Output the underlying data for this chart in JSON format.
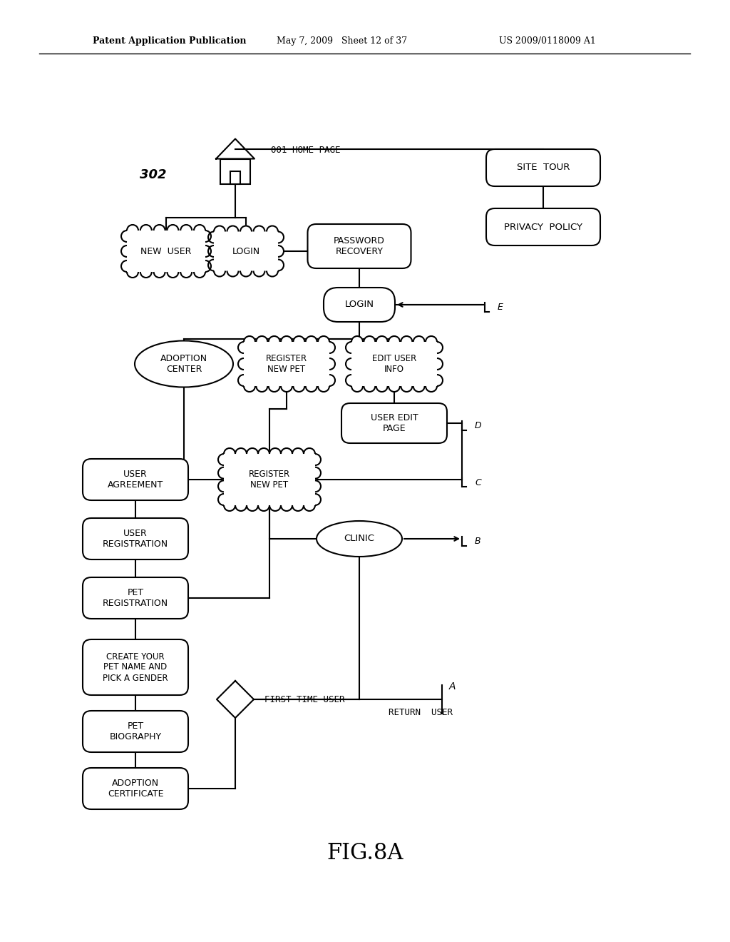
{
  "bg_color": "#ffffff",
  "header_left": "Patent Application Publication",
  "header_mid": "May 7, 2009   Sheet 12 of 37",
  "header_right": "US 2009/0118009 A1",
  "figure_label": "FIG.8A"
}
